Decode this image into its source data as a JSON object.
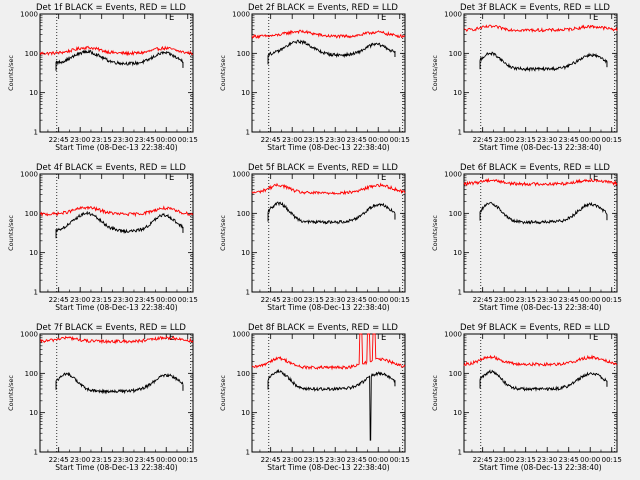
{
  "chart_data": [
    {
      "type": "line",
      "title": "Det 1f BLACK = Events, RED = LLD",
      "flag": "E",
      "ylabel": "Counts/sec",
      "xlabel": "Start Time (08-Dec-13 22:38:40)",
      "x_ticks": [
        "22:45",
        "23:00",
        "23:15",
        "23:30",
        "23:45",
        "00:00",
        "00:15"
      ],
      "y_ticks": [
        "1",
        "10",
        "100",
        "1000"
      ],
      "yscale": "log",
      "ylim": [
        1,
        1000
      ],
      "xlim": [
        -6.7,
        100
      ],
      "series": [
        {
          "color": "#ff0000",
          "x_start": -6.7,
          "x_end": 100,
          "dip": "double",
          "max": 140,
          "min": 100,
          "sec": 0.9
        },
        {
          "color": "#000000",
          "x_start": 4.5,
          "x_end": 93,
          "dip": "double",
          "max": 110,
          "min": 55,
          "sec": 0.9
        }
      ]
    },
    {
      "type": "line",
      "title": "Det 2f BLACK = Events, RED = LLD",
      "flag": "E",
      "ylabel": "Counts/sec",
      "xlabel": "Start Time (08-Dec-13 22:38:40)",
      "x_ticks": [
        "22:45",
        "23:00",
        "23:15",
        "23:30",
        "23:45",
        "00:00",
        "00:15"
      ],
      "y_ticks": [
        "1",
        "10",
        "100",
        "1000"
      ],
      "yscale": "log",
      "ylim": [
        1,
        1000
      ],
      "xlim": [
        -6.7,
        100
      ],
      "series": [
        {
          "color": "#ff0000",
          "x_start": -6.7,
          "x_end": 100,
          "dip": "double",
          "max": 360,
          "min": 270,
          "sec": 0.85
        },
        {
          "color": "#000000",
          "x_start": 4.5,
          "x_end": 93,
          "dip": "double",
          "max": 200,
          "min": 90,
          "sec": 0.8
        }
      ]
    },
    {
      "type": "line",
      "title": "Det 3f BLACK = Events, RED = LLD",
      "flag": "E",
      "ylabel": "Counts/sec",
      "xlabel": "Start Time (08-Dec-13 22:38:40)",
      "x_ticks": [
        "22:45",
        "23:00",
        "23:15",
        "23:30",
        "23:45",
        "00:00",
        "00:15"
      ],
      "y_ticks": [
        "1",
        "10",
        "100",
        "1000"
      ],
      "yscale": "log",
      "ylim": [
        1,
        1000
      ],
      "xlim": [
        -6.7,
        100
      ],
      "series": [
        {
          "color": "#ff0000",
          "x_start": -6.7,
          "x_end": 100,
          "dip": "single",
          "max": 480,
          "min": 390,
          "sec": 1.0
        },
        {
          "color": "#000000",
          "x_start": 4.5,
          "x_end": 93,
          "dip": "single",
          "max": 100,
          "min": 40,
          "sec": 0.9
        }
      ]
    },
    {
      "type": "line",
      "title": "Det 4f BLACK = Events, RED = LLD",
      "flag": "E",
      "ylabel": "Counts/sec",
      "xlabel": "Start Time (08-Dec-13 22:38:40)",
      "x_ticks": [
        "22:45",
        "23:00",
        "23:15",
        "23:30",
        "23:45",
        "00:00",
        "00:15"
      ],
      "y_ticks": [
        "1",
        "10",
        "100",
        "1000"
      ],
      "yscale": "log",
      "ylim": [
        1,
        1000
      ],
      "xlim": [
        -6.7,
        100
      ],
      "series": [
        {
          "color": "#ff0000",
          "x_start": -6.7,
          "x_end": 100,
          "dip": "double",
          "max": 140,
          "min": 95,
          "sec": 0.9
        },
        {
          "color": "#000000",
          "x_start": 4.5,
          "x_end": 93,
          "dip": "double",
          "max": 100,
          "min": 35,
          "sec": 0.9
        }
      ]
    },
    {
      "type": "line",
      "title": "Det 5f BLACK = Events, RED = LLD",
      "flag": "E",
      "ylabel": "Counts/sec",
      "xlabel": "Start Time (08-Dec-13 22:38:40)",
      "x_ticks": [
        "22:45",
        "23:00",
        "23:15",
        "23:30",
        "23:45",
        "00:00",
        "00:15"
      ],
      "y_ticks": [
        "1",
        "10",
        "100",
        "1000"
      ],
      "yscale": "log",
      "ylim": [
        1,
        1000
      ],
      "xlim": [
        -6.7,
        100
      ],
      "series": [
        {
          "color": "#ff0000",
          "x_start": -6.7,
          "x_end": 100,
          "dip": "single",
          "max": 520,
          "min": 330,
          "sec": 1.0
        },
        {
          "color": "#000000",
          "x_start": 4.5,
          "x_end": 93,
          "dip": "single",
          "max": 180,
          "min": 60,
          "sec": 0.95
        }
      ]
    },
    {
      "type": "line",
      "title": "Det 6f BLACK = Events, RED = LLD",
      "flag": "E",
      "ylabel": "Counts/sec",
      "xlabel": "Start Time (08-Dec-13 22:38:40)",
      "x_ticks": [
        "22:45",
        "23:00",
        "23:15",
        "23:30",
        "23:45",
        "00:00",
        "00:15"
      ],
      "y_ticks": [
        "1",
        "10",
        "100",
        "1000"
      ],
      "yscale": "log",
      "ylim": [
        1,
        1000
      ],
      "xlim": [
        -6.7,
        100
      ],
      "series": [
        {
          "color": "#ff0000",
          "x_start": -6.7,
          "x_end": 100,
          "dip": "single",
          "max": 700,
          "min": 560,
          "sec": 1.0
        },
        {
          "color": "#000000",
          "x_start": 4.5,
          "x_end": 93,
          "dip": "single",
          "max": 180,
          "min": 60,
          "sec": 0.95
        }
      ]
    },
    {
      "type": "line",
      "title": "Det 7f BLACK = Events, RED = LLD",
      "flag": "E",
      "ylabel": "Counts/sec",
      "xlabel": "Start Time (08-Dec-13 22:38:40)",
      "x_ticks": [
        "22:45",
        "23:00",
        "23:15",
        "23:30",
        "23:45",
        "00:00",
        "00:15"
      ],
      "y_ticks": [
        "1",
        "10",
        "100",
        "1000"
      ],
      "yscale": "log",
      "ylim": [
        1,
        1000
      ],
      "xlim": [
        -6.7,
        100
      ],
      "series": [
        {
          "color": "#ff0000",
          "x_start": -6.7,
          "x_end": 100,
          "dip": "single",
          "max": 800,
          "min": 650,
          "sec": 1.0
        },
        {
          "color": "#000000",
          "x_start": 4.5,
          "x_end": 93,
          "dip": "single",
          "max": 95,
          "min": 35,
          "sec": 0.95
        }
      ]
    },
    {
      "type": "line",
      "title": "Det 8f BLACK = Events, RED = LLD",
      "flag": "E",
      "ylabel": "Counts/sec",
      "xlabel": "Start Time (08-Dec-13 22:38:40)",
      "x_ticks": [
        "22:45",
        "23:00",
        "23:15",
        "23:30",
        "23:45",
        "00:00",
        "00:15"
      ],
      "y_ticks": [
        "1",
        "10",
        "100",
        "1000"
      ],
      "yscale": "log",
      "ylim": [
        1,
        1000
      ],
      "xlim": [
        -6.7,
        100
      ],
      "series": [
        {
          "color": "#ff0000",
          "x_start": -6.7,
          "x_end": 100,
          "dip": "single",
          "max": 240,
          "min": 140,
          "sec": 0.9,
          "spikes": [
            [
              68.2,
              70.2
            ],
            [
              73.8,
              75.5
            ],
            [
              77.5,
              79.5
            ]
          ]
        },
        {
          "color": "#000000",
          "x_start": 4.5,
          "x_end": 93,
          "dip": "single",
          "max": 110,
          "min": 40,
          "sec": 0.9,
          "spikes": [
            [
              75.5,
              76.5
            ]
          ]
        }
      ]
    },
    {
      "type": "line",
      "title": "Det 9f BLACK = Events, RED = LLD",
      "flag": "E",
      "ylabel": "Counts/sec",
      "xlabel": "Start Time (08-Dec-13 22:38:40)",
      "x_ticks": [
        "22:45",
        "23:00",
        "23:15",
        "23:30",
        "23:45",
        "00:00",
        "00:15"
      ],
      "y_ticks": [
        "1",
        "10",
        "100",
        "1000"
      ],
      "yscale": "log",
      "ylim": [
        1,
        1000
      ],
      "xlim": [
        -6.7,
        100
      ],
      "series": [
        {
          "color": "#ff0000",
          "x_start": -6.7,
          "x_end": 100,
          "dip": "single",
          "max": 260,
          "min": 170,
          "sec": 0.95
        },
        {
          "color": "#000000",
          "x_start": 4.5,
          "x_end": 93,
          "dip": "single",
          "max": 110,
          "min": 40,
          "sec": 0.9
        }
      ]
    }
  ]
}
